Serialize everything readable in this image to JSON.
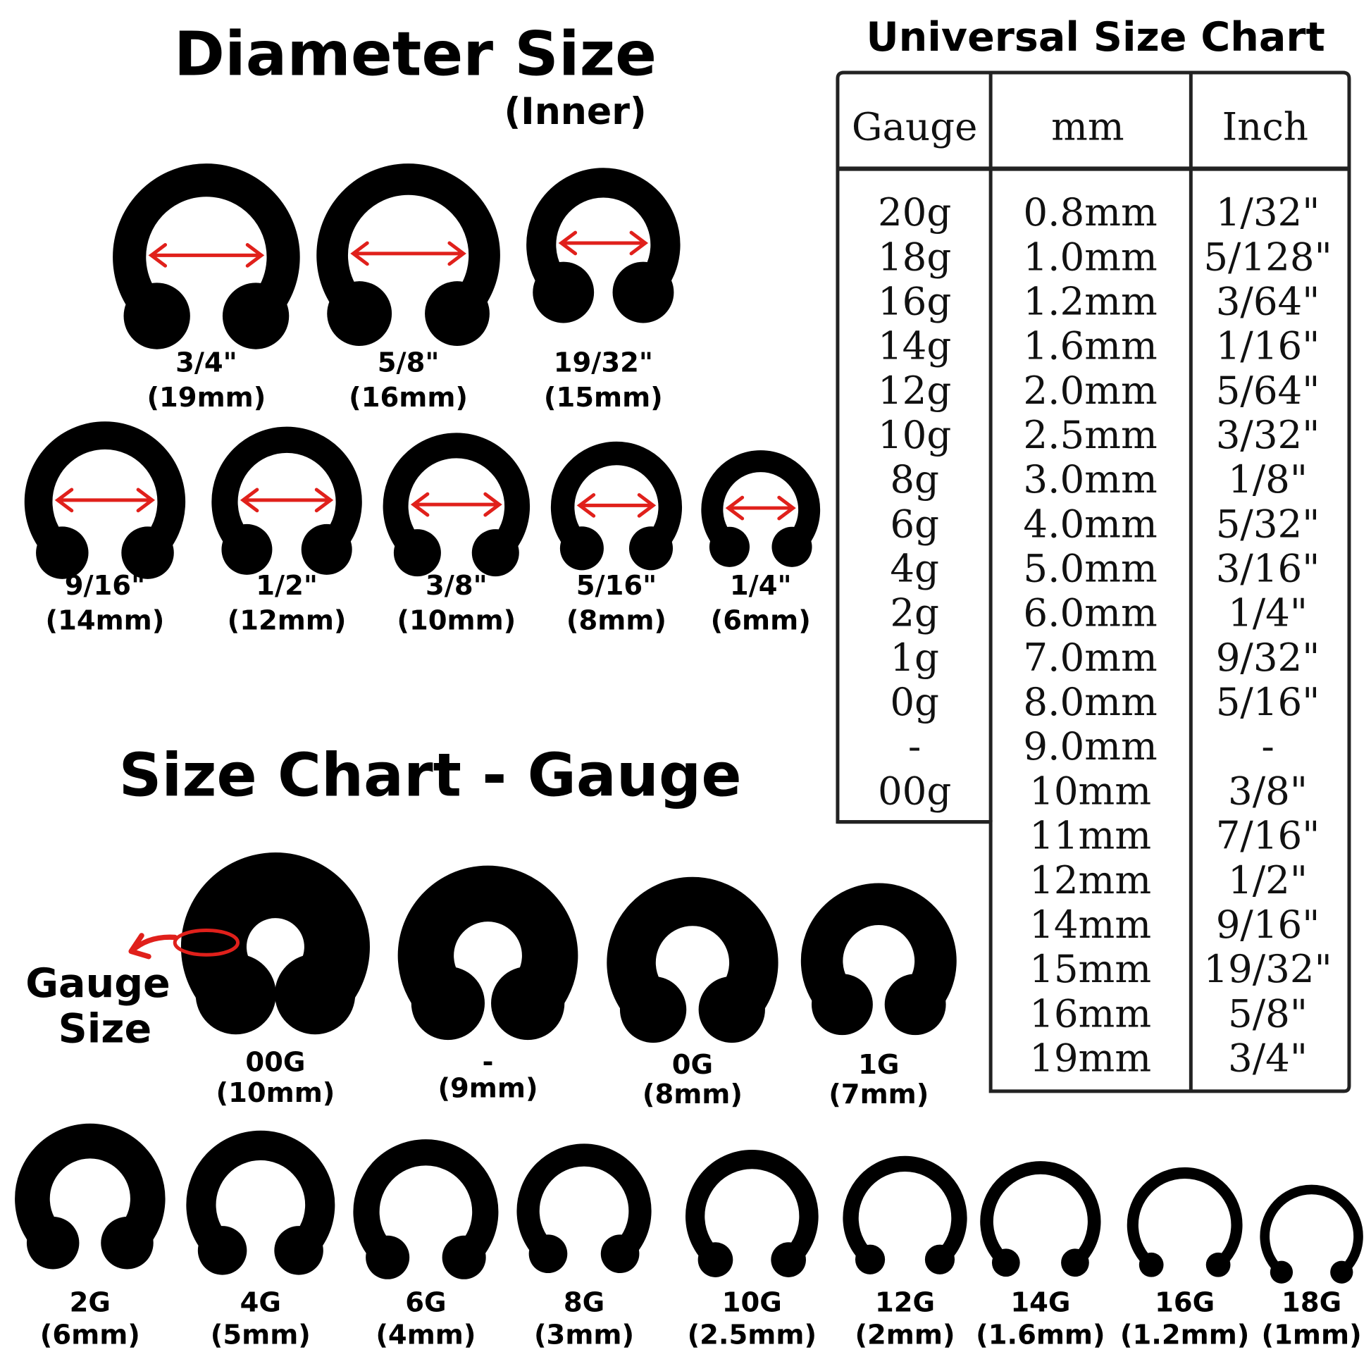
{
  "diameter": {
    "title": "Diameter Size",
    "subtitle": "(Inner)",
    "arrow_color": "#e0201b",
    "items": [
      {
        "size": "3/4\"",
        "mm": "(19mm)"
      },
      {
        "size": "5/8\"",
        "mm": "(16mm)"
      },
      {
        "size": "19/32\"",
        "mm": "(15mm)"
      },
      {
        "size": "9/16\"",
        "mm": "(14mm)"
      },
      {
        "size": "1/2\"",
        "mm": "(12mm)"
      },
      {
        "size": "3/8\"",
        "mm": "(10mm)"
      },
      {
        "size": "5/16\"",
        "mm": "(8mm)"
      },
      {
        "size": "1/4\"",
        "mm": "(6mm)"
      }
    ]
  },
  "gauge": {
    "title": "Size Chart - Gauge",
    "callout_line1": "Gauge",
    "callout_line2": "Size",
    "items": [
      {
        "gauge": "00G",
        "mm": "(10mm)"
      },
      {
        "gauge": "-",
        "mm": "(9mm)"
      },
      {
        "gauge": "0G",
        "mm": "(8mm)"
      },
      {
        "gauge": "1G",
        "mm": "(7mm)"
      },
      {
        "gauge": "2G",
        "mm": "(6mm)"
      },
      {
        "gauge": "4G",
        "mm": "(5mm)"
      },
      {
        "gauge": "6G",
        "mm": "(4mm)"
      },
      {
        "gauge": "8G",
        "mm": "(3mm)"
      },
      {
        "gauge": "10G",
        "mm": "(2.5mm)"
      },
      {
        "gauge": "12G",
        "mm": "(2mm)"
      },
      {
        "gauge": "14G",
        "mm": "(1.6mm)"
      },
      {
        "gauge": "16G",
        "mm": "(1.2mm)"
      },
      {
        "gauge": "18G",
        "mm": "(1mm)"
      }
    ]
  },
  "table": {
    "title": "Universal Size Chart",
    "headers": [
      "Gauge",
      "mm",
      "Inch"
    ],
    "gauge": [
      "20g",
      "18g",
      "16g",
      "14g",
      "12g",
      "10g",
      "8g",
      "6g",
      "4g",
      "2g",
      "1g",
      "0g",
      "-",
      "00g"
    ],
    "mm": [
      "0.8mm",
      "1.0mm",
      "1.2mm",
      "1.6mm",
      "2.0mm",
      "2.5mm",
      "3.0mm",
      "4.0mm",
      "5.0mm",
      "6.0mm",
      "7.0mm",
      "8.0mm",
      "9.0mm",
      "10mm",
      "11mm",
      "12mm",
      "14mm",
      "15mm",
      "16mm",
      "19mm"
    ],
    "inch": [
      "1/32\"",
      "5/128\"",
      "3/64\"",
      "1/16\"",
      "5/64\"",
      "3/32\"",
      "1/8\"",
      "5/32\"",
      "3/16\"",
      "1/4\"",
      "9/32\"",
      "5/16\"",
      "-",
      "3/8\"",
      "7/16\"",
      "1/2\"",
      "9/16\"",
      "19/32\"",
      "5/8\"",
      "3/4\""
    ]
  }
}
